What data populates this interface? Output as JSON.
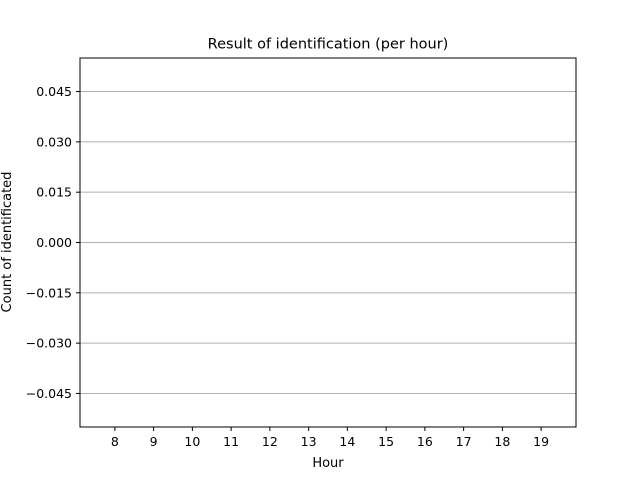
{
  "chart_data": {
    "type": "bar",
    "title": "Result of identification (per hour)",
    "xlabel": "Hour",
    "ylabel": "Count of identificated",
    "categories": [
      "8",
      "9",
      "10",
      "11",
      "12",
      "13",
      "14",
      "15",
      "16",
      "17",
      "18",
      "19"
    ],
    "values": [
      0,
      0,
      0,
      0,
      0,
      0,
      0,
      0,
      0,
      0,
      0,
      0
    ],
    "ylim": [
      -0.055,
      0.055
    ],
    "yticks": [
      -0.045,
      -0.03,
      -0.015,
      0.0,
      0.015,
      0.03,
      0.045
    ],
    "ytick_labels": [
      "−0.045",
      "−0.030",
      "−0.015",
      "0.000",
      "0.015",
      "0.030",
      "0.045"
    ],
    "grid": "y-axis",
    "colors": {
      "grid": "#b0b0b0",
      "axis": "#000000",
      "bar": "#1f77b4"
    }
  }
}
